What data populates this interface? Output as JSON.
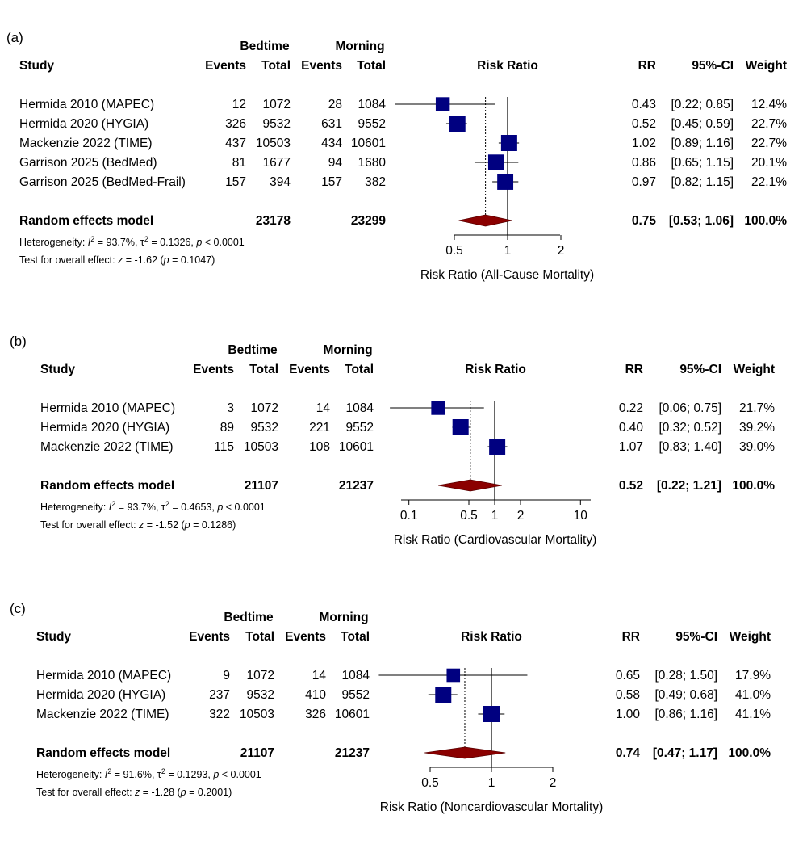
{
  "header": {
    "study": "Study",
    "bedtime": "Bedtime",
    "morning": "Morning",
    "events": "Events",
    "total": "Total",
    "risk_ratio": "Risk Ratio",
    "rr": "RR",
    "ci": "95%-CI",
    "weight": "Weight"
  },
  "colors": {
    "square": "#000080",
    "diamond": "#8B0000",
    "line": "#000000"
  },
  "chart_data": [
    {
      "type": "forest",
      "panel_label": "(a)",
      "xlabel": "Risk Ratio (All-Cause Mortality)",
      "scale": "log",
      "xlim": [
        0.4,
        2.4
      ],
      "ticks": [
        0.5,
        1,
        2
      ],
      "tick_labels": [
        "0.5",
        "1",
        "2"
      ],
      "studies": [
        {
          "name": "Hermida 2010 (MAPEC)",
          "bed_events": "12",
          "bed_total": "1072",
          "morn_events": "28",
          "morn_total": "1084",
          "rr": 0.43,
          "lo": 0.22,
          "hi": 0.85,
          "rr_text": "0.43",
          "ci_text": "[0.22; 0.85]",
          "weight_text": "12.4%",
          "weight": 12.4
        },
        {
          "name": "Hermida 2020 (HYGIA)",
          "bed_events": "326",
          "bed_total": "9532",
          "morn_events": "631",
          "morn_total": "9552",
          "rr": 0.52,
          "lo": 0.45,
          "hi": 0.59,
          "rr_text": "0.52",
          "ci_text": "[0.45; 0.59]",
          "weight_text": "22.7%",
          "weight": 22.7
        },
        {
          "name": "Mackenzie 2022 (TIME)",
          "bed_events": "437",
          "bed_total": "10503",
          "morn_events": "434",
          "morn_total": "10601",
          "rr": 1.02,
          "lo": 0.89,
          "hi": 1.16,
          "rr_text": "1.02",
          "ci_text": "[0.89; 1.16]",
          "weight_text": "22.7%",
          "weight": 22.7
        },
        {
          "name": "Garrison 2025 (BedMed)",
          "bed_events": "81",
          "bed_total": "1677",
          "morn_events": "94",
          "morn_total": "1680",
          "rr": 0.86,
          "lo": 0.65,
          "hi": 1.15,
          "rr_text": "0.86",
          "ci_text": "[0.65; 1.15]",
          "weight_text": "20.1%",
          "weight": 20.1
        },
        {
          "name": "Garrison 2025 (BedMed-Frail)",
          "bed_events": "157",
          "bed_total": "394",
          "morn_events": "157",
          "morn_total": "382",
          "rr": 0.97,
          "lo": 0.82,
          "hi": 1.15,
          "rr_text": "0.97",
          "ci_text": "[0.82; 1.15]",
          "weight_text": "22.1%",
          "weight": 22.1
        }
      ],
      "pooled": {
        "name": "Random effects model",
        "bed_total": "23178",
        "morn_total": "23299",
        "rr": 0.75,
        "lo": 0.53,
        "hi": 1.06,
        "rr_text": "0.75",
        "ci_text": "[0.53; 1.06]",
        "weight_text": "100.0%"
      },
      "heterogeneity": {
        "prefix": "Heterogeneity: ",
        "i2_letter": "I",
        "sup": "2",
        "i2_value": " = 93.7%, ",
        "tau_letter": "τ",
        "tau_value": " = 0.1326, ",
        "p_letter": "p",
        "p_value": " < 0.0001"
      },
      "overall": {
        "prefix": "Test for overall effect: ",
        "z_letter": "z",
        "z_value": " = -1.62 (",
        "p_letter": "p",
        "p_value": " = 0.1047)"
      }
    },
    {
      "type": "forest",
      "panel_label": "(b)",
      "xlabel": "Risk Ratio (Cardiovascular Mortality)",
      "scale": "log",
      "xlim": [
        0.08,
        12
      ],
      "ticks": [
        0.1,
        0.5,
        1,
        2,
        10
      ],
      "tick_labels": [
        "0.1",
        "0.5",
        "1",
        "2",
        "10"
      ],
      "studies": [
        {
          "name": "Hermida 2010 (MAPEC)",
          "bed_events": "3",
          "bed_total": "1072",
          "morn_events": "14",
          "morn_total": "1084",
          "rr": 0.22,
          "lo": 0.06,
          "hi": 0.75,
          "rr_text": "0.22",
          "ci_text": "[0.06; 0.75]",
          "weight_text": "21.7%",
          "weight": 21.7
        },
        {
          "name": "Hermida 2020 (HYGIA)",
          "bed_events": "89",
          "bed_total": "9532",
          "morn_events": "221",
          "morn_total": "9552",
          "rr": 0.4,
          "lo": 0.32,
          "hi": 0.52,
          "rr_text": "0.40",
          "ci_text": "[0.32; 0.52]",
          "weight_text": "39.2%",
          "weight": 39.2
        },
        {
          "name": "Mackenzie 2022 (TIME)",
          "bed_events": "115",
          "bed_total": "10503",
          "morn_events": "108",
          "morn_total": "10601",
          "rr": 1.07,
          "lo": 0.83,
          "hi": 1.4,
          "rr_text": "1.07",
          "ci_text": "[0.83; 1.40]",
          "weight_text": "39.0%",
          "weight": 39.0
        }
      ],
      "pooled": {
        "name": "Random effects model",
        "bed_total": "21107",
        "morn_total": "21237",
        "rr": 0.52,
        "lo": 0.22,
        "hi": 1.21,
        "rr_text": "0.52",
        "ci_text": "[0.22; 1.21]",
        "weight_text": "100.0%"
      },
      "heterogeneity": {
        "prefix": "Heterogeneity: ",
        "i2_letter": "I",
        "sup": "2",
        "i2_value": " = 93.7%, ",
        "tau_letter": "τ",
        "tau_value": " = 0.4653, ",
        "p_letter": "p",
        "p_value": " < 0.0001"
      },
      "overall": {
        "prefix": "Test for overall effect: ",
        "z_letter": "z",
        "z_value": " = -1.52 (",
        "p_letter": "p",
        "p_value": " = 0.1286)"
      }
    },
    {
      "type": "forest",
      "panel_label": "(c)",
      "xlabel": "Risk Ratio (Noncardiovascular Mortality)",
      "scale": "log",
      "xlim": [
        0.4,
        2.5
      ],
      "ticks": [
        0.5,
        1,
        2
      ],
      "tick_labels": [
        "0.5",
        "1",
        "2"
      ],
      "studies": [
        {
          "name": "Hermida 2010 (MAPEC)",
          "bed_events": "9",
          "bed_total": "1072",
          "morn_events": "14",
          "morn_total": "1084",
          "rr": 0.65,
          "lo": 0.28,
          "hi": 1.5,
          "rr_text": "0.65",
          "ci_text": "[0.28; 1.50]",
          "weight_text": "17.9%",
          "weight": 17.9
        },
        {
          "name": "Hermida 2020 (HYGIA)",
          "bed_events": "237",
          "bed_total": "9532",
          "morn_events": "410",
          "morn_total": "9552",
          "rr": 0.58,
          "lo": 0.49,
          "hi": 0.68,
          "rr_text": "0.58",
          "ci_text": "[0.49; 0.68]",
          "weight_text": "41.0%",
          "weight": 41.0
        },
        {
          "name": "Mackenzie 2022 (TIME)",
          "bed_events": "322",
          "bed_total": "10503",
          "morn_events": "326",
          "morn_total": "10601",
          "rr": 1.0,
          "lo": 0.86,
          "hi": 1.16,
          "rr_text": "1.00",
          "ci_text": "[0.86; 1.16]",
          "weight_text": "41.1%",
          "weight": 41.1
        }
      ],
      "pooled": {
        "name": "Random effects model",
        "bed_total": "21107",
        "morn_total": "21237",
        "rr": 0.74,
        "lo": 0.47,
        "hi": 1.17,
        "rr_text": "0.74",
        "ci_text": "[0.47; 1.17]",
        "weight_text": "100.0%"
      },
      "heterogeneity": {
        "prefix": "Heterogeneity: ",
        "i2_letter": "I",
        "sup": "2",
        "i2_value": " = 91.6%, ",
        "tau_letter": "τ",
        "tau_value": " = 0.1293, ",
        "p_letter": "p",
        "p_value": " < 0.0001"
      },
      "overall": {
        "prefix": "Test for overall effect: ",
        "z_letter": "z",
        "z_value": " = -1.28 (",
        "p_letter": "p",
        "p_value": " = 0.2001)"
      }
    }
  ]
}
